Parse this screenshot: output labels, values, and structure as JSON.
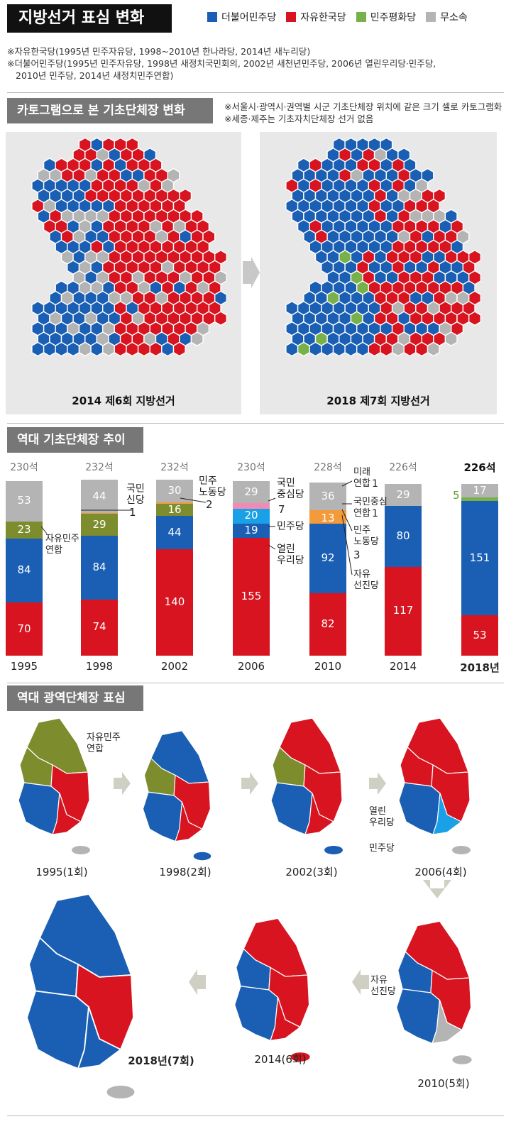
{
  "title": "지방선거 표심 변화",
  "legend": [
    {
      "label": "더불어민주당",
      "color": "#1a5fb4"
    },
    {
      "label": "자유한국당",
      "color": "#d7141f"
    },
    {
      "label": "민주평화당",
      "color": "#78b04a"
    },
    {
      "label": "무소속",
      "color": "#b4b4b4"
    }
  ],
  "notes": [
    "※자유한국당(1995년 민주자유당, 1998~2010년 한나라당, 2014년 새누리당)",
    "※더불어민주당(1995년 민주자유당, 1998년 새정치국민회의, 2002년 새천년민주당, 2006년 열린우리당·민주당,",
    "2010년 민주당, 2014년 새정치민주연합)"
  ],
  "section1": {
    "title": "카토그램으로 본 기초단체장 변화",
    "notes": [
      "※서울시·광역시·권역별 시군 기초단체장 위치에 같은 크기 셀로 카토그램화",
      "※세종·제주는 기초자치단체장 선거 없음"
    ],
    "left_caption": "2014 제6회 지방선거",
    "right_caption": "2018 제7회 지방선거"
  },
  "section2": {
    "title": "역대 기초단체장 추이"
  },
  "section3": {
    "title": "역대 광역단체장 표심"
  },
  "colors": {
    "blue": "#1a5fb4",
    "red": "#d7141f",
    "olive": "#7d8c2c",
    "gray": "#b4b4b4",
    "green": "#78b04a",
    "orange": "#f39a3a",
    "pink": "#f08cb4",
    "sky": "#1aa0e6",
    "dark": "#111111"
  },
  "chart_data": {
    "type": "bar",
    "categories": [
      "1995",
      "1998",
      "2002",
      "2006",
      "2010",
      "2014",
      "2018년"
    ],
    "totals": [
      "230석",
      "232석",
      "232석",
      "230석",
      "228석",
      "226석",
      "226석"
    ],
    "stacks": [
      [
        {
          "party": "자유한국당",
          "value": 70,
          "color": "red"
        },
        {
          "party": "더불어민주당",
          "value": 84,
          "color": "blue"
        },
        {
          "party": "자유민주연합",
          "value": 23,
          "color": "olive"
        },
        {
          "party": "무소속",
          "value": 53,
          "color": "gray"
        }
      ],
      [
        {
          "party": "자유한국당",
          "value": 74,
          "color": "red"
        },
        {
          "party": "더불어민주당",
          "value": 84,
          "color": "blue"
        },
        {
          "party": "자유민주연합",
          "value": 29,
          "color": "olive"
        },
        {
          "party": "국민신당",
          "value": 1,
          "color": "orange"
        },
        {
          "party": "무소속",
          "value": 44,
          "color": "gray"
        }
      ],
      [
        {
          "party": "자유한국당",
          "value": 140,
          "color": "red"
        },
        {
          "party": "더불어민주당",
          "value": 44,
          "color": "blue"
        },
        {
          "party": "자유민주연합",
          "value": 16,
          "color": "olive"
        },
        {
          "party": "민주노동당",
          "value": 2,
          "color": "orange"
        },
        {
          "party": "무소속",
          "value": 30,
          "color": "gray"
        }
      ],
      [
        {
          "party": "자유한국당",
          "value": 155,
          "color": "red"
        },
        {
          "party": "열린우리당",
          "value": 19,
          "color": "blue"
        },
        {
          "party": "민주당",
          "value": 20,
          "color": "sky"
        },
        {
          "party": "국민중심당",
          "value": 7,
          "color": "pink"
        },
        {
          "party": "무소속",
          "value": 29,
          "color": "gray"
        }
      ],
      [
        {
          "party": "자유한국당",
          "value": 82,
          "color": "red"
        },
        {
          "party": "더불어민주당",
          "value": 92,
          "color": "blue"
        },
        {
          "party": "자유선진당",
          "value": 13,
          "color": "orange"
        },
        {
          "party": "민주노동당",
          "value": 3,
          "color": "orange"
        },
        {
          "party": "국민중심연합",
          "value": 1,
          "color": "orange"
        },
        {
          "party": "미래연합",
          "value": 1,
          "color": "orange"
        },
        {
          "party": "무소속",
          "value": 36,
          "color": "gray"
        }
      ],
      [
        {
          "party": "자유한국당",
          "value": 117,
          "color": "red"
        },
        {
          "party": "더불어민주당",
          "value": 80,
          "color": "blue"
        },
        {
          "party": "무소속",
          "value": 29,
          "color": "gray"
        }
      ],
      [
        {
          "party": "자유한국당",
          "value": 53,
          "color": "red"
        },
        {
          "party": "더불어민주당",
          "value": 151,
          "color": "blue"
        },
        {
          "party": "민주평화당",
          "value": 5,
          "color": "green"
        },
        {
          "party": "무소속",
          "value": 17,
          "color": "gray"
        }
      ]
    ],
    "side_labels": {
      "b1": "자유민주\n연합",
      "b2": "국민\n신당",
      "b2n": "1",
      "b3": "민주\n노동당",
      "b3n": "2",
      "b4a": "국민\n중심당",
      "b4an": "7",
      "b4b": "민주당",
      "b4c": "열린\n우리당",
      "b5a": "미래\n연합",
      "b5an": "1",
      "b5b": "국민중심\n연합",
      "b5bn": "1",
      "b5c": "민주\n노동당",
      "b5cn": "3",
      "b5d": "자유\n선진당",
      "b7n": "5"
    }
  },
  "maps": {
    "m1": "1995(1회)",
    "m2": "1998(2회)",
    "m3": "2002(3회)",
    "m4": "2006(4회)",
    "m5": "2010(5회)",
    "m6": "2014(6회)",
    "m7": "2018년(7회)",
    "label_jamin": "자유민주\n연합",
    "label_yeollin": "열린\n우리당",
    "label_minju": "민주당",
    "label_jayu": "자유\n선진당"
  }
}
